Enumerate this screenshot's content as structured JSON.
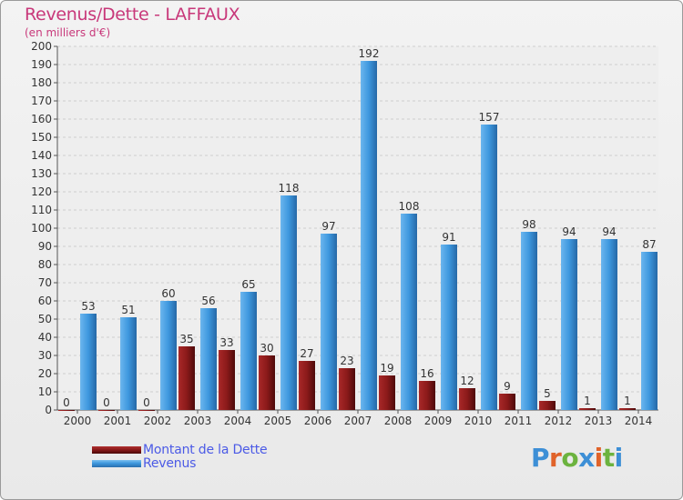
{
  "title": "Revenus/Dette - LAFFAUX",
  "subtitle": "(en milliers d'€)",
  "colors": {
    "debt": "#8b1a1a",
    "revenue": "#3d97de",
    "title": "#c8387a",
    "legend_text": "#4b5ae6"
  },
  "legend": {
    "debt_label": "Montant de la Dette",
    "revenue_label": "Revenus"
  },
  "logo": {
    "text": "Proxiti",
    "letter_colors": [
      "#3d8fd6",
      "#e0632a",
      "#6cb33f",
      "#3d8fd6",
      "#e0632a",
      "#6cb33f",
      "#3d8fd6"
    ]
  },
  "chart_data": {
    "type": "bar",
    "categories": [
      "2000",
      "2001",
      "2002",
      "2003",
      "2004",
      "2005",
      "2006",
      "2007",
      "2008",
      "2009",
      "2010",
      "2011",
      "2012",
      "2013",
      "2014"
    ],
    "series": [
      {
        "name": "Montant de la Dette",
        "color": "#8b1a1a",
        "values": [
          0,
          0,
          0,
          35,
          33,
          30,
          27,
          23,
          19,
          16,
          12,
          9,
          5,
          1,
          1
        ]
      },
      {
        "name": "Revenus",
        "color": "#3d97de",
        "values": [
          53,
          51,
          60,
          56,
          65,
          118,
          97,
          192,
          108,
          91,
          157,
          98,
          94,
          94,
          87
        ]
      }
    ],
    "ylim": [
      0,
      200
    ],
    "ytick_step": 10,
    "grid": true,
    "legend_position": "bottom-left"
  }
}
